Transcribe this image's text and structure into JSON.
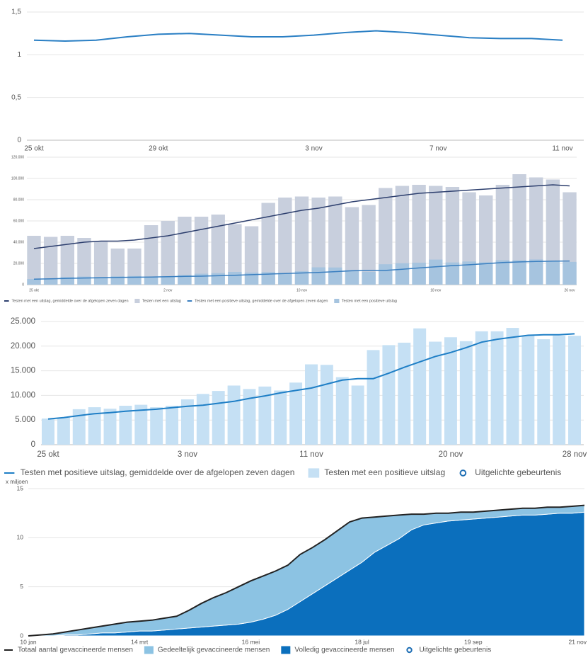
{
  "chart_data": [
    {
      "type": "line",
      "categories": [
        "25 okt",
        null,
        null,
        null,
        "29 okt",
        null,
        null,
        null,
        null,
        "3 nov",
        null,
        null,
        null,
        "7 nov",
        null,
        null,
        null,
        "11 nov"
      ],
      "series": [
        {
          "type": "line",
          "color": "#2a7fc4",
          "values": [
            1.17,
            1.16,
            1.17,
            1.21,
            1.24,
            1.25,
            1.23,
            1.21,
            1.21,
            1.23,
            1.26,
            1.28,
            1.26,
            1.23,
            1.2,
            1.19,
            1.19,
            1.17
          ]
        }
      ],
      "ylim": [
        0,
        1.5
      ],
      "yticks": [
        0,
        {
          "value": 0.5,
          "label": "0,5"
        },
        1,
        {
          "value": 1.5,
          "label": "1,5"
        }
      ],
      "grid": true
    },
    {
      "type": "bar",
      "categories": [
        "25 okt",
        null,
        null,
        null,
        null,
        null,
        null,
        null,
        "2 nov",
        null,
        null,
        null,
        null,
        null,
        null,
        null,
        "10 nov",
        null,
        null,
        null,
        null,
        null,
        null,
        null,
        "18 nov",
        null,
        null,
        null,
        null,
        null,
        null,
        null,
        "26 nov"
      ],
      "series": [
        {
          "name": "Testen met een uitslag, gemiddelde over de afgelopen zeven dagen",
          "type": "line",
          "color": "#2d3f6e",
          "values": [
            34000,
            36000,
            38000,
            40000,
            41000,
            41000,
            42000,
            44000,
            46000,
            49000,
            52000,
            55000,
            58000,
            61000,
            64000,
            67000,
            70000,
            72000,
            75000,
            78000,
            80000,
            82000,
            84000,
            86000,
            87000,
            88000,
            89000,
            90000,
            91000,
            92000,
            93000,
            94000,
            93000
          ]
        },
        {
          "name": "Testen met een uitslag",
          "type": "bar",
          "color": "#c8cfdd",
          "values": [
            46000,
            45000,
            46000,
            44000,
            41000,
            34000,
            34000,
            56000,
            60000,
            64000,
            64000,
            66000,
            57000,
            55000,
            77000,
            82000,
            83000,
            82000,
            83000,
            73000,
            75000,
            91000,
            93000,
            94000,
            93000,
            92000,
            87000,
            84000,
            94000,
            104000,
            101000,
            99000,
            87000
          ]
        },
        {
          "name": "Testen met een positieve uitslag, gemiddelde over de afgelopen zeven dagen",
          "type": "line",
          "color": "#3a7fc0",
          "values": [
            5200,
            5500,
            5900,
            6300,
            6500,
            6800,
            7000,
            7200,
            7500,
            7800,
            8000,
            8400,
            8800,
            9400,
            9900,
            10500,
            11000,
            11500,
            12300,
            13100,
            13400,
            13400,
            14500,
            15700,
            16800,
            17900,
            18700,
            19700,
            20800,
            21400,
            21800,
            22200,
            22300
          ]
        },
        {
          "name": "Testen met een positieve uitslag",
          "type": "bar",
          "color": "#a6c4df",
          "values": [
            5300,
            5500,
            7200,
            7600,
            7300,
            7900,
            8100,
            7600,
            7900,
            9200,
            10300,
            10900,
            12000,
            11300,
            11800,
            11000,
            12600,
            16300,
            16200,
            13700,
            12000,
            19200,
            20200,
            20700,
            23600,
            20900,
            21800,
            21000,
            23000,
            23000,
            23700,
            22100,
            21400
          ]
        }
      ],
      "ylim": [
        0,
        120000
      ],
      "yticks": [
        0,
        {
          "value": 20000,
          "label": "20.000"
        },
        {
          "value": 40000,
          "label": "40.000"
        },
        {
          "value": 60000,
          "label": "60.000"
        },
        {
          "value": 80000,
          "label": "80.000"
        },
        {
          "value": 100000,
          "label": "100.000"
        },
        {
          "value": 120000,
          "label": "120.000"
        }
      ],
      "grid": true
    },
    {
      "type": "bar",
      "categories": [
        "25 okt",
        null,
        null,
        null,
        null,
        null,
        null,
        null,
        null,
        "3 nov",
        null,
        null,
        null,
        null,
        null,
        null,
        null,
        "11 nov",
        null,
        null,
        null,
        null,
        null,
        null,
        null,
        null,
        "20 nov",
        null,
        null,
        null,
        null,
        null,
        null,
        null,
        "28 nov"
      ],
      "series": [
        {
          "name": "Testen met positieve uitslag, gemiddelde over de afgelopen zeven dagen",
          "type": "line",
          "color": "#1f7fc6",
          "values": [
            5200,
            5500,
            5900,
            6300,
            6500,
            6800,
            7000,
            7200,
            7500,
            7800,
            8000,
            8400,
            8800,
            9400,
            9900,
            10500,
            11000,
            11500,
            12300,
            13100,
            13400,
            13400,
            14500,
            15700,
            16800,
            17900,
            18700,
            19700,
            20800,
            21400,
            21800,
            22200,
            22300,
            22300,
            22500
          ]
        },
        {
          "name": "Testen met een positieve uitslag",
          "type": "bar",
          "color": "#c5e0f4",
          "values": [
            5300,
            5500,
            7200,
            7600,
            7300,
            7900,
            8100,
            7600,
            7900,
            9200,
            10300,
            10900,
            12000,
            11300,
            11800,
            11000,
            12600,
            16300,
            16200,
            13700,
            12000,
            19200,
            20200,
            20700,
            23600,
            20900,
            21800,
            21000,
            23000,
            23000,
            23700,
            22100,
            21400,
            22100,
            22100
          ]
        }
      ],
      "event_legend": "Uitgelichte gebeurtenis",
      "event_color": "#1f6fb5",
      "ylim": [
        0,
        25000
      ],
      "yticks": [
        0,
        {
          "value": 5000,
          "label": "5.000"
        },
        {
          "value": 10000,
          "label": "10.000"
        },
        {
          "value": 15000,
          "label": "15.000"
        },
        {
          "value": 20000,
          "label": "20.000"
        },
        {
          "value": 25000,
          "label": "25.000"
        }
      ],
      "grid": true
    },
    {
      "type": "area",
      "ylabel": "x miljoen",
      "categories": [
        "10 jan",
        null,
        null,
        null,
        null,
        null,
        null,
        null,
        null,
        "14 mrt",
        null,
        null,
        null,
        null,
        null,
        null,
        null,
        null,
        "16 mei",
        null,
        null,
        null,
        null,
        null,
        null,
        null,
        null,
        "18 jul",
        null,
        null,
        null,
        null,
        null,
        null,
        null,
        null,
        "19 sep",
        null,
        null,
        null,
        null,
        null,
        null,
        null,
        null,
        "21 nov"
      ],
      "series": [
        {
          "name": "Totaal aantal gevaccineerde mensen",
          "type": "line",
          "color": "#222222",
          "values": [
            0,
            0.1,
            0.2,
            0.4,
            0.6,
            0.8,
            1.0,
            1.2,
            1.4,
            1.5,
            1.6,
            1.8,
            2.0,
            2.6,
            3.3,
            3.9,
            4.4,
            5.0,
            5.6,
            6.1,
            6.6,
            7.2,
            8.3,
            9.0,
            9.8,
            10.7,
            11.6,
            12.0,
            12.1,
            12.2,
            12.3,
            12.4,
            12.4,
            12.5,
            12.5,
            12.6,
            12.6,
            12.7,
            12.8,
            12.9,
            13.0,
            13.0,
            13.1,
            13.1,
            13.2,
            13.3
          ]
        },
        {
          "name": "Gedeeltelijk gevaccineerde mensen",
          "type": "area",
          "color": "#8cc3e3",
          "values": [
            0,
            0.1,
            0.2,
            0.3,
            0.5,
            0.6,
            0.7,
            0.9,
            1.0,
            1.0,
            1.1,
            1.2,
            1.3,
            1.8,
            2.4,
            2.9,
            3.3,
            3.8,
            4.2,
            4.4,
            4.5,
            4.5,
            4.8,
            4.7,
            4.7,
            4.8,
            4.9,
            4.5,
            3.6,
            3.0,
            2.4,
            1.6,
            1.1,
            1.0,
            0.8,
            0.8,
            0.7,
            0.7,
            0.7,
            0.7,
            0.7,
            0.7,
            0.7,
            0.6,
            0.7,
            0.7
          ]
        },
        {
          "name": "Volledig gevaccineerde mensen",
          "type": "area",
          "color": "#0b6fbd",
          "values": [
            0,
            0,
            0,
            0.1,
            0.1,
            0.2,
            0.3,
            0.3,
            0.4,
            0.5,
            0.5,
            0.6,
            0.7,
            0.8,
            0.9,
            1.0,
            1.1,
            1.2,
            1.4,
            1.7,
            2.1,
            2.7,
            3.5,
            4.3,
            5.1,
            5.9,
            6.7,
            7.5,
            8.5,
            9.2,
            9.9,
            10.8,
            11.3,
            11.5,
            11.7,
            11.8,
            11.9,
            12.0,
            12.1,
            12.2,
            12.3,
            12.3,
            12.4,
            12.5,
            12.5,
            12.6
          ]
        }
      ],
      "event_legend": "Uitgelichte gebeurtenis",
      "event_color": "#1f6fb5",
      "ylim": [
        0,
        15
      ],
      "yticks": [
        0,
        5,
        10,
        15
      ],
      "grid": true
    }
  ]
}
